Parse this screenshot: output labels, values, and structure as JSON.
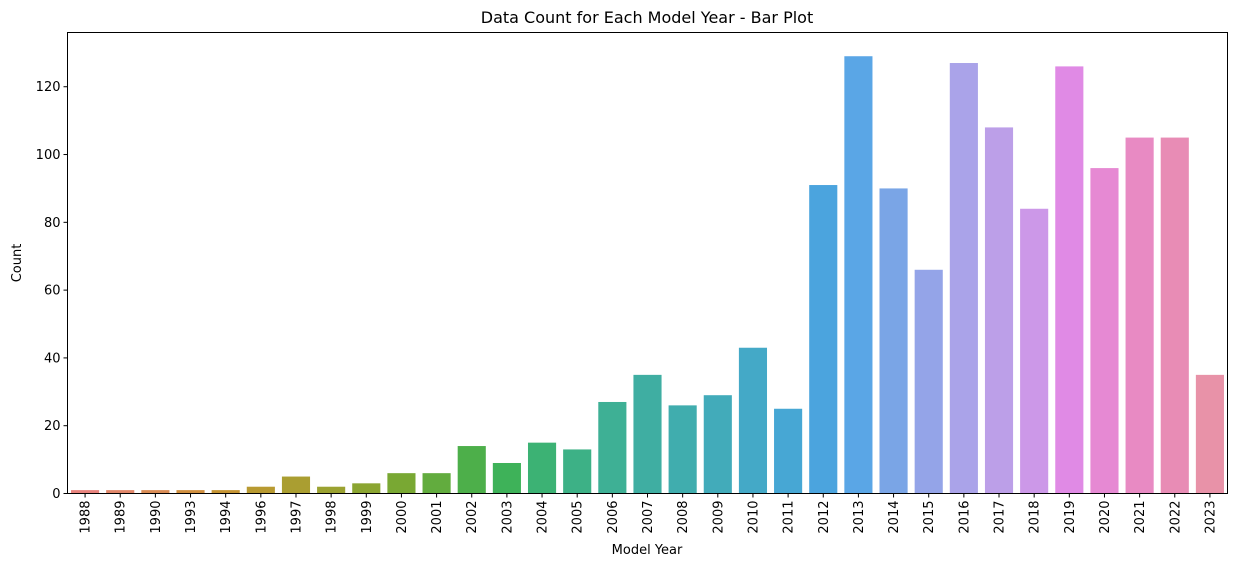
{
  "chart_data": {
    "type": "bar",
    "title": "Data Count for Each Model Year - Bar Plot",
    "xlabel": "Model Year",
    "ylabel": "Count",
    "ylim": [
      0,
      136
    ],
    "yticks": [
      0,
      20,
      40,
      60,
      80,
      100,
      120
    ],
    "grid": false,
    "legend": "none",
    "categories": [
      "1988",
      "1989",
      "1990",
      "1993",
      "1994",
      "1996",
      "1997",
      "1998",
      "1999",
      "2000",
      "2001",
      "2002",
      "2003",
      "2004",
      "2005",
      "2006",
      "2007",
      "2008",
      "2009",
      "2010",
      "2011",
      "2012",
      "2013",
      "2014",
      "2015",
      "2016",
      "2017",
      "2018",
      "2019",
      "2020",
      "2021",
      "2022",
      "2023"
    ],
    "values": [
      1,
      1,
      1,
      1,
      1,
      2,
      5,
      2,
      3,
      6,
      6,
      14,
      9,
      15,
      13,
      27,
      35,
      26,
      29,
      43,
      25,
      91,
      129,
      90,
      66,
      127,
      108,
      84,
      126,
      96,
      105,
      105,
      35
    ],
    "colors": [
      "#e8837d",
      "#e1876a",
      "#d98c55",
      "#d08f3f",
      "#c59433",
      "#b89a31",
      "#aa9e31",
      "#9ba231",
      "#8ba531",
      "#79a833",
      "#62ac3e",
      "#4daf4a",
      "#3eb259",
      "#3cb274",
      "#3db186",
      "#3eb095",
      "#3faea2",
      "#40adae",
      "#42abba",
      "#44a9c7",
      "#47a7d4",
      "#4ba4de",
      "#5aa6e6",
      "#7aa5e6",
      "#94a4e8",
      "#aaa3e9",
      "#bc9fe8",
      "#cc98e8",
      "#e08ae5",
      "#e689d3",
      "#e88ac3",
      "#e88cb5",
      "#e892a8"
    ]
  }
}
